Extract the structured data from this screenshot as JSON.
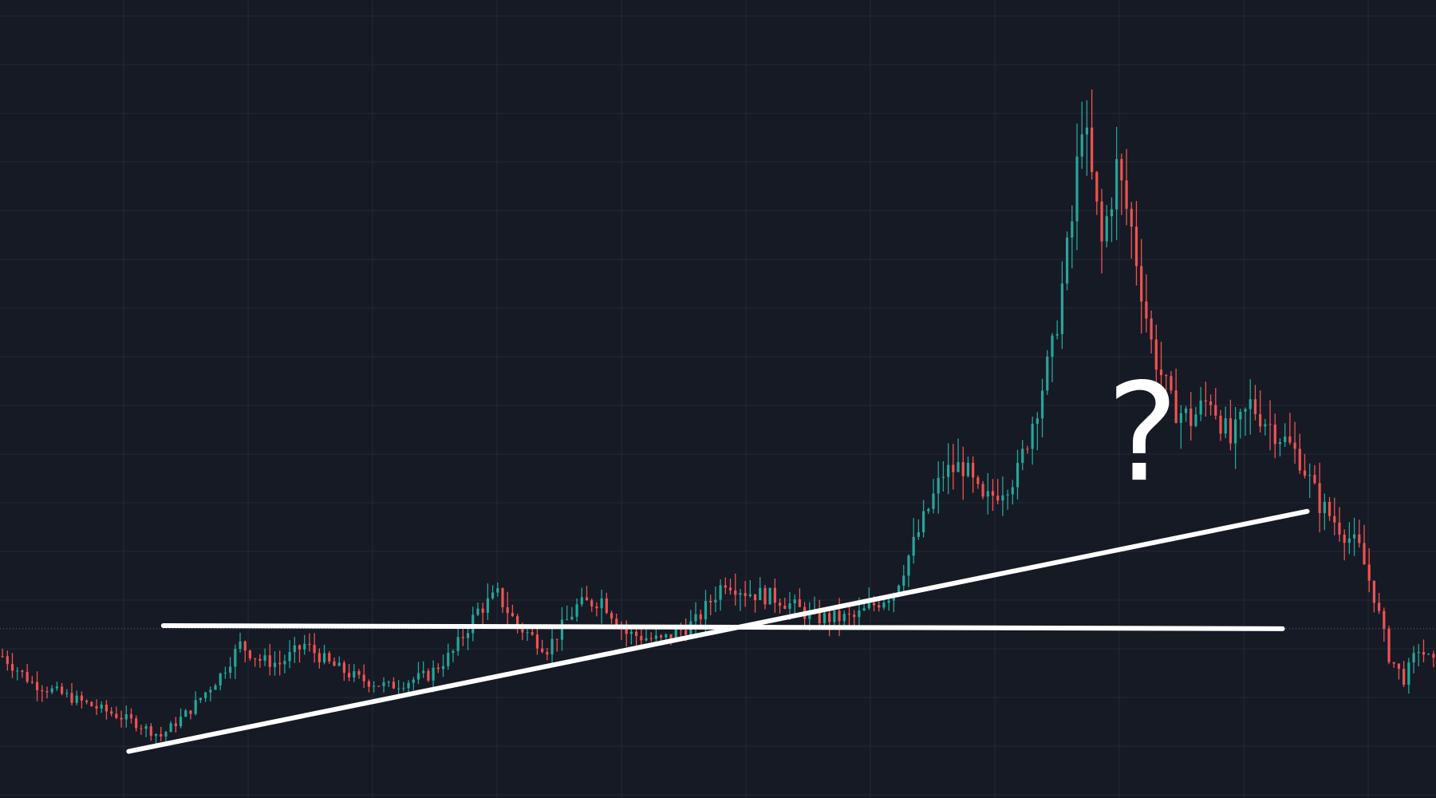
{
  "chart_data": {
    "type": "candlestick",
    "title": "",
    "xlabel": "",
    "ylabel": "",
    "grid": true,
    "legend": "none",
    "x_range": [
      0,
      290
    ],
    "y_range": [
      0,
      100
    ],
    "colors": {
      "background": "#161a25",
      "grid": "#232836",
      "up": "#26a69a",
      "down": "#ef5350",
      "drawing": "#ffffff",
      "price_line": "#4d6b6b"
    },
    "anchors": [
      [
        0,
        16
      ],
      [
        6,
        12.5
      ],
      [
        12,
        11
      ],
      [
        18,
        9.5
      ],
      [
        26,
        7.5
      ],
      [
        32,
        5.5
      ],
      [
        38,
        9
      ],
      [
        44,
        13.5
      ],
      [
        48,
        17.5
      ],
      [
        52,
        15.5
      ],
      [
        56,
        15
      ],
      [
        61,
        17.5
      ],
      [
        66,
        15
      ],
      [
        72,
        13
      ],
      [
        78,
        12
      ],
      [
        86,
        13.5
      ],
      [
        91,
        16.5
      ],
      [
        96,
        22
      ],
      [
        100,
        24
      ],
      [
        104,
        20
      ],
      [
        110,
        17
      ],
      [
        116,
        22.5
      ],
      [
        121,
        23.5
      ],
      [
        126,
        19
      ],
      [
        133,
        18
      ],
      [
        140,
        20.5
      ],
      [
        146,
        26
      ],
      [
        150,
        24.5
      ],
      [
        157,
        23.5
      ],
      [
        164,
        21
      ],
      [
        172,
        21
      ],
      [
        180,
        24.5
      ],
      [
        190,
        40
      ],
      [
        194,
        41
      ],
      [
        198,
        36
      ],
      [
        205,
        40
      ],
      [
        212,
        56
      ],
      [
        216,
        73
      ],
      [
        218,
        87
      ],
      [
        222,
        70
      ],
      [
        225,
        80
      ],
      [
        228,
        72
      ],
      [
        232,
        57
      ],
      [
        236,
        49
      ],
      [
        240,
        47
      ],
      [
        244,
        50
      ],
      [
        248,
        44
      ],
      [
        252,
        49
      ],
      [
        258,
        45
      ],
      [
        262,
        42
      ],
      [
        266,
        36
      ],
      [
        270,
        33
      ],
      [
        274,
        30
      ],
      [
        277,
        24
      ],
      [
        280,
        16
      ],
      [
        283,
        13
      ],
      [
        286,
        17
      ],
      [
        289,
        15
      ]
    ],
    "last_price_level": 19.6,
    "drawings": {
      "horizontal_support": {
        "points": [
          [
            33,
            20.0
          ],
          [
            259,
            19.6
          ]
        ]
      },
      "ascending_trendline": {
        "points": [
          [
            26,
            3.5
          ],
          [
            264,
            35.0
          ]
        ]
      },
      "question_mark": {
        "text": "?",
        "anchor": [
          228,
          47
        ]
      }
    }
  }
}
